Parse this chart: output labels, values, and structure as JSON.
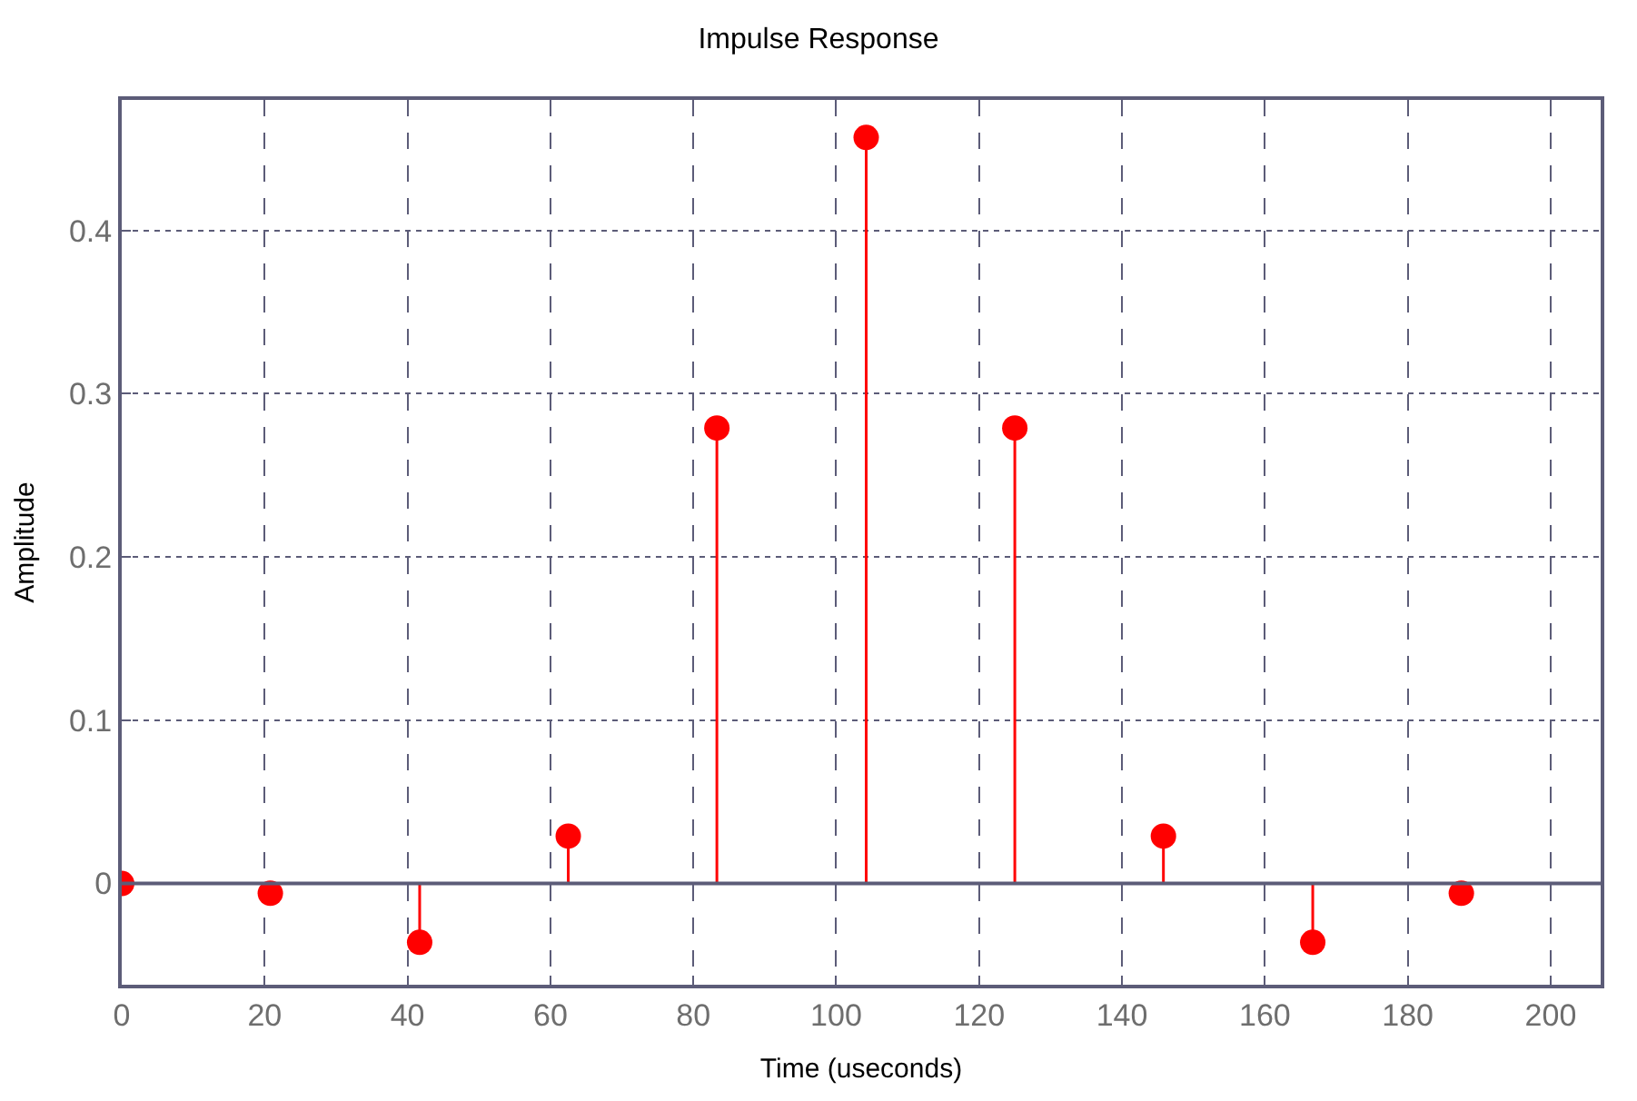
{
  "chart_data": {
    "type": "lollipop",
    "title": "Impulse Response",
    "xlabel": "Time (useconds)",
    "ylabel": "Amplitude",
    "x": [
      0,
      20.8,
      41.7,
      62.5,
      83.3,
      104.2,
      125,
      145.8,
      166.7,
      187.5
    ],
    "series": [
      {
        "color": "#ff0000",
        "values": [
          0,
          -0.006,
          -0.036,
          0.029,
          0.279,
          0.457,
          0.279,
          0.029,
          -0.036,
          -0.006
        ]
      }
    ],
    "xlim": [
      0,
      207
    ],
    "xticks": [
      0,
      20,
      40,
      60,
      80,
      100,
      120,
      140,
      160,
      180,
      200
    ],
    "ylim": [
      -0.062,
      0.48
    ],
    "yticks": [
      0,
      0.1,
      0.2,
      0.3,
      0.4
    ],
    "grid": true,
    "marker": "circle"
  }
}
